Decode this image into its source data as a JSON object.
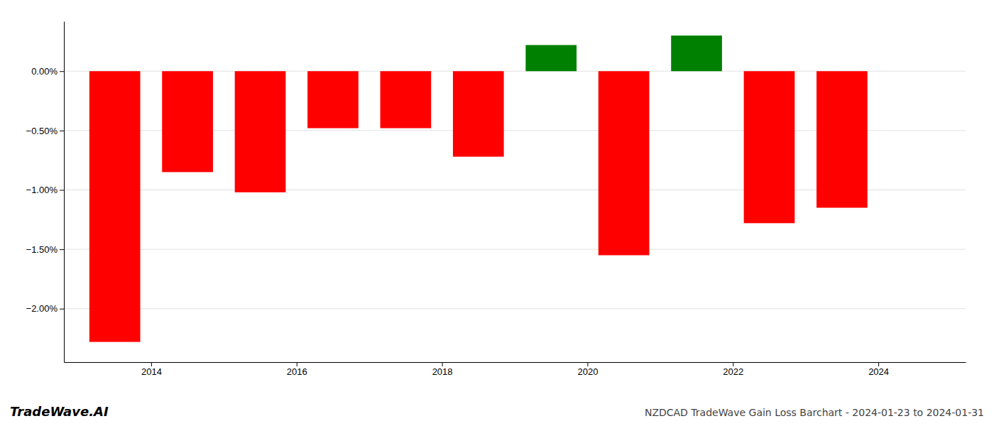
{
  "chart_data": {
    "type": "bar",
    "title": "NZDCAD TradeWave Gain Loss Barchart - 2024-01-23 to 2024-01-31",
    "annotations": [
      "TradeWave.AI"
    ],
    "x": [
      2013.5,
      2014.5,
      2015.5,
      2016.5,
      2017.5,
      2018.5,
      2019.5,
      2020.5,
      2021.5,
      2022.5,
      2023.5
    ],
    "values": [
      -2.28,
      -0.85,
      -1.02,
      -0.48,
      -0.48,
      -0.72,
      0.22,
      -1.55,
      0.3,
      -1.28,
      -1.15
    ],
    "colors": [
      "#ff0000",
      "#ff0000",
      "#ff0000",
      "#ff0000",
      "#ff0000",
      "#ff0000",
      "#008000",
      "#ff0000",
      "#008000",
      "#ff0000",
      "#ff0000"
    ],
    "xlim": [
      2012.8,
      2025.2
    ],
    "xticks": [
      2014,
      2016,
      2018,
      2020,
      2022,
      2024
    ],
    "ylim": [
      -2.45,
      0.42
    ],
    "yticks": [
      {
        "value": 0.0,
        "label": "0.00%"
      },
      {
        "value": -0.5,
        "label": "−0.50%"
      },
      {
        "value": -1.0,
        "label": "−1.00%"
      },
      {
        "value": -1.5,
        "label": "−1.50%"
      },
      {
        "value": -2.0,
        "label": "−2.00%"
      }
    ],
    "grid": true
  }
}
